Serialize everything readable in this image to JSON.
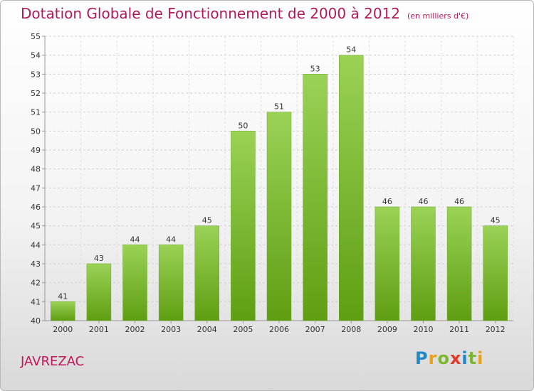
{
  "chart_data": {
    "type": "bar",
    "title": "Dotation Globale de Fonctionnement de 2000 à 2012",
    "unit_label": "(en milliers d'€)",
    "categories": [
      "2000",
      "2001",
      "2002",
      "2003",
      "2004",
      "2005",
      "2006",
      "2007",
      "2008",
      "2009",
      "2010",
      "2011",
      "2012"
    ],
    "values": [
      41,
      43,
      44,
      44,
      45,
      50,
      51,
      53,
      54,
      46,
      46,
      46,
      45
    ],
    "ylim": [
      40,
      55
    ],
    "yticks": [
      40,
      41,
      42,
      43,
      44,
      45,
      46,
      47,
      48,
      49,
      50,
      51,
      52,
      53,
      54,
      55
    ],
    "grid": true,
    "bar_color": "#7cbf34"
  },
  "commune": "JAVREZAC",
  "logo": {
    "text": "Proxiti",
    "letters": [
      "P",
      "r",
      "o",
      "x",
      "i",
      "t",
      "i"
    ]
  }
}
